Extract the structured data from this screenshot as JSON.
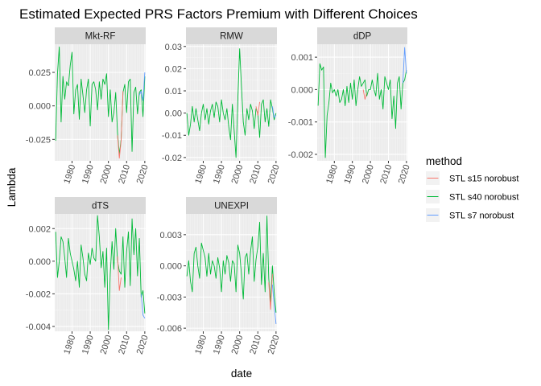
{
  "chart_data": {
    "type": "line",
    "title": "Estimated Expected PRS Factors Premium with Different Choices",
    "xlabel": "date",
    "ylabel": "Lambda",
    "legend": {
      "title": "method",
      "placement": "right",
      "entries": [
        {
          "name": "STL s15 norobust",
          "color": "#F8766D"
        },
        {
          "name": "STL s40 norobust",
          "color": "#00BA38"
        },
        {
          "name": "STL s7 norobust",
          "color": "#619CFF"
        }
      ]
    },
    "x_ticks": [
      1980,
      1990,
      2000,
      2010,
      2020
    ],
    "xlim": [
      1970.5,
      2020.5
    ],
    "grid": true,
    "panels": [
      {
        "name": "Mkt-RF",
        "ylim": [
          -0.041,
          0.046
        ],
        "y_ticks": [
          -0.025,
          0.0,
          0.025
        ],
        "y_tick_labels": [
          "-0.025",
          "0.000",
          "0.025"
        ],
        "series": [
          {
            "name": "STL s40 norobust",
            "x": [
              1971,
              1972,
              1973,
              1974,
              1975,
              1976,
              1977,
              1978,
              1979,
              1980,
              1981,
              1982,
              1983,
              1984,
              1985,
              1986,
              1987,
              1988,
              1989,
              1990,
              1991,
              1992,
              1993,
              1994,
              1995,
              1996,
              1997,
              1998,
              1999,
              2000,
              2001,
              2002,
              2003,
              2004,
              2005,
              2006,
              2007,
              2008,
              2009,
              2010,
              2011,
              2012,
              2013,
              2014,
              2015,
              2016,
              2017,
              2018,
              2019,
              2020
            ],
            "y": [
              -0.026,
              0.024,
              0.044,
              -0.012,
              0.022,
              0.005,
              0.018,
              0.015,
              0.03,
              0.04,
              -0.006,
              0.012,
              0.016,
              -0.01,
              0.02,
              0.008,
              -0.005,
              0.012,
              0.02,
              -0.015,
              0.016,
              0.018,
              0.012,
              -0.003,
              0.018,
              0.005,
              0.02,
              0.016,
              0.024,
              -0.008,
              0.012,
              -0.012,
              -0.005,
              0.01,
              -0.02,
              -0.036,
              -0.025,
              0.01,
              0.016,
              -0.005,
              0.018,
              0.02,
              -0.034,
              0.01,
              0.014,
              -0.006,
              0.01,
              0.012,
              -0.008,
              0.022
            ]
          },
          {
            "name": "STL s15 norobust",
            "x": [
              2005,
              2006,
              2007,
              2008
            ],
            "y": [
              -0.022,
              -0.039,
              -0.026,
              0.011
            ]
          },
          {
            "name": "STL s7 norobust",
            "x": [
              2017,
              2018,
              2019,
              2020
            ],
            "y": [
              0.008,
              0.011,
              0.004,
              0.025
            ]
          }
        ]
      },
      {
        "name": "RMW",
        "ylim": [
          -0.0215,
          0.031
        ],
        "y_ticks": [
          -0.02,
          -0.01,
          0.0,
          0.01,
          0.02,
          0.03
        ],
        "y_tick_labels": [
          "-0.02",
          "-0.01",
          "0.00",
          "0.01",
          "0.02",
          "0.03"
        ],
        "series": [
          {
            "name": "STL s40 norobust",
            "x": [
              1971,
              1972,
              1973,
              1974,
              1975,
              1976,
              1977,
              1978,
              1979,
              1980,
              1981,
              1982,
              1983,
              1984,
              1985,
              1986,
              1987,
              1988,
              1989,
              1990,
              1991,
              1992,
              1993,
              1994,
              1995,
              1996,
              1997,
              1998,
              1999,
              2000,
              2001,
              2002,
              2003,
              2004,
              2005,
              2006,
              2007,
              2008,
              2009,
              2010,
              2011,
              2012,
              2013,
              2014,
              2015,
              2016,
              2017,
              2018,
              2019,
              2020
            ],
            "y": [
              0.0,
              -0.01,
              -0.005,
              0.003,
              -0.004,
              0.002,
              -0.003,
              -0.008,
              0.0,
              0.004,
              -0.003,
              0.002,
              -0.005,
              0.001,
              0.004,
              -0.002,
              0.005,
              0.003,
              -0.004,
              0.006,
              0.0,
              -0.003,
              0.002,
              -0.006,
              -0.012,
              0.004,
              -0.008,
              -0.02,
              0.006,
              0.029,
              0.012,
              -0.004,
              -0.01,
              0.002,
              -0.003,
              0.004,
              0.001,
              -0.007,
              0.002,
              0.0,
              -0.011,
              0.004,
              0.006,
              -0.004,
              0.002,
              -0.006,
              0.006,
              0.002,
              -0.003,
              0.0
            ]
          },
          {
            "name": "STL s15 norobust",
            "x": [
              2009,
              2010,
              2011
            ],
            "y": [
              0.003,
              -0.001,
              0.005
            ]
          },
          {
            "name": "STL s7 norobust",
            "x": [
              2018,
              2019,
              2020
            ],
            "y": [
              0.003,
              -0.002,
              -0.001
            ]
          }
        ]
      },
      {
        "name": "dDP",
        "ylim": [
          -0.0022,
          0.0014
        ],
        "y_ticks": [
          -0.002,
          -0.001,
          0.0,
          0.001
        ],
        "y_tick_labels": [
          "-0.002",
          "-0.001",
          "0.000",
          "0.001"
        ],
        "series": [
          {
            "name": "STL s40 norobust",
            "x": [
              1971,
              1972,
              1973,
              1974,
              1975,
              1976,
              1977,
              1978,
              1979,
              1980,
              1981,
              1982,
              1983,
              1984,
              1985,
              1986,
              1987,
              1988,
              1989,
              1990,
              1991,
              1992,
              1993,
              1994,
              1995,
              1996,
              1997,
              1998,
              1999,
              2000,
              2001,
              2002,
              2003,
              2004,
              2005,
              2006,
              2007,
              2008,
              2009,
              2010,
              2011,
              2012,
              2013,
              2014,
              2015,
              2016,
              2017,
              2018,
              2019,
              2020
            ],
            "y": [
              -0.0005,
              0.0008,
              0.0006,
              0.0007,
              -0.0021,
              -0.0008,
              -0.0004,
              0.0002,
              -0.0001,
              0.0,
              -0.0002,
              0.0,
              -0.0004,
              -0.0003,
              0.0,
              -0.0005,
              0.0001,
              -0.0004,
              0.0002,
              -0.0003,
              0.0003,
              -0.0005,
              0.0,
              0.0004,
              0.0001,
              0.0002,
              0.0003,
              -0.0002,
              0.0,
              0.0,
              0.0003,
              0.0,
              -0.0002,
              0.0005,
              -0.0003,
              0.0,
              -0.0006,
              0.0004,
              0.0002,
              0.0,
              0.0003,
              -0.0009,
              -0.0002,
              -0.0012,
              0.0002,
              0.0004,
              -0.0006,
              0.0002,
              0.0003,
              0.0006
            ]
          },
          {
            "name": "STL s15 norobust",
            "x": [
              1996,
              1997,
              1998
            ],
            "y": [
              0.0,
              -0.0003,
              -0.0001
            ]
          },
          {
            "name": "STL s7 norobust",
            "x": [
              2018,
              2019,
              2020
            ],
            "y": [
              0.0002,
              0.0013,
              0.0005
            ]
          }
        ]
      },
      {
        "name": "dTS",
        "ylim": [
          -0.0043,
          0.0029
        ],
        "y_ticks": [
          -0.004,
          -0.002,
          0.0,
          0.002
        ],
        "y_tick_labels": [
          "-0.004",
          "-0.002",
          "0.000",
          "0.002"
        ],
        "series": [
          {
            "name": "STL s40 norobust",
            "x": [
              1971,
              1972,
              1973,
              1974,
              1975,
              1976,
              1977,
              1978,
              1979,
              1980,
              1981,
              1982,
              1983,
              1984,
              1985,
              1986,
              1987,
              1988,
              1989,
              1990,
              1991,
              1992,
              1993,
              1994,
              1995,
              1996,
              1997,
              1998,
              1999,
              2000,
              2001,
              2002,
              2003,
              2004,
              2005,
              2006,
              2007,
              2008,
              2009,
              2010,
              2011,
              2012,
              2013,
              2014,
              2015,
              2016,
              2017,
              2018,
              2019,
              2020
            ],
            "y": [
              0.0018,
              -0.001,
              0.0,
              0.0015,
              0.0012,
              0.0002,
              -0.001,
              0.0014,
              0.0005,
              0.0,
              -0.0005,
              -0.0012,
              0.0,
              -0.0016,
              0.001,
              0.0002,
              -0.0008,
              -0.0012,
              0.0005,
              -0.0002,
              0.0008,
              0.0002,
              0.0,
              0.0028,
              0.0015,
              -0.0004,
              0.0006,
              -0.0016,
              0.0008,
              -0.0042,
              -0.0008,
              0.0012,
              -0.0005,
              0.002,
              0.0,
              -0.0006,
              -0.0008,
              0.0015,
              -0.0016,
              0.0006,
              0.0018,
              -0.0015,
              0.0026,
              0.0004,
              0.002,
              -0.0009,
              0.0014,
              -0.0022,
              -0.0018,
              -0.0032
            ]
          },
          {
            "name": "STL s15 norobust",
            "x": [
              2005,
              2006,
              2007
            ],
            "y": [
              0.0003,
              -0.0018,
              -0.001
            ]
          },
          {
            "name": "STL s7 norobust",
            "x": [
              2018,
              2019,
              2020
            ],
            "y": [
              -0.002,
              -0.0033,
              -0.0035
            ]
          }
        ]
      },
      {
        "name": "UNEXPI",
        "ylim": [
          -0.0063,
          0.005
        ],
        "y_ticks": [
          -0.006,
          -0.003,
          0.0,
          0.003
        ],
        "y_tick_labels": [
          "-0.006",
          "-0.003",
          "0.000",
          "0.003"
        ],
        "series": [
          {
            "name": "STL s40 norobust",
            "x": [
              1971,
              1972,
              1973,
              1974,
              1975,
              1976,
              1977,
              1978,
              1979,
              1980,
              1981,
              1982,
              1983,
              1984,
              1985,
              1986,
              1987,
              1988,
              1989,
              1990,
              1991,
              1992,
              1993,
              1994,
              1995,
              1996,
              1997,
              1998,
              1999,
              2000,
              2001,
              2002,
              2003,
              2004,
              2005,
              2006,
              2007,
              2008,
              2009,
              2010,
              2011,
              2012,
              2013,
              2014,
              2015,
              2016,
              2017,
              2018,
              2019,
              2020
            ],
            "y": [
              -0.001,
              0.0005,
              -0.0015,
              -0.0025,
              0.0012,
              0.0018,
              0.0,
              -0.0012,
              0.0022,
              0.0015,
              0.0008,
              -0.001,
              0.0012,
              -0.0008,
              0.0005,
              0.0,
              -0.0012,
              0.0008,
              -0.0002,
              -0.0025,
              0.0005,
              -0.0008,
              0.001,
              0.0003,
              -0.0015,
              0.0005,
              0.0002,
              -0.0025,
              0.002,
              0.0012,
              -0.0008,
              -0.0032,
              0.0008,
              0.0012,
              -0.0008,
              0.0014,
              0.0028,
              -0.0015,
              0.0006,
              0.0018,
              0.0042,
              -0.0018,
              0.0012,
              -0.0025,
              0.0048,
              -0.0012,
              -0.0035,
              0.0,
              -0.0025,
              -0.0045
            ]
          },
          {
            "name": "STL s15 norobust",
            "x": [
              2016,
              2017,
              2018
            ],
            "y": [
              -0.0016,
              -0.0042,
              -0.0008
            ]
          },
          {
            "name": "STL s7 norobust",
            "x": [
              2018,
              2019,
              2020
            ],
            "y": [
              -0.0018,
              -0.0038,
              -0.0056
            ]
          }
        ]
      }
    ]
  },
  "style": {
    "panel_bg": "#EBEBEB",
    "strip_bg": "#D9D9D9",
    "grid_major": "#FFFFFF",
    "grid_minor": "#F5F5F5",
    "tick_color": "#333333"
  }
}
